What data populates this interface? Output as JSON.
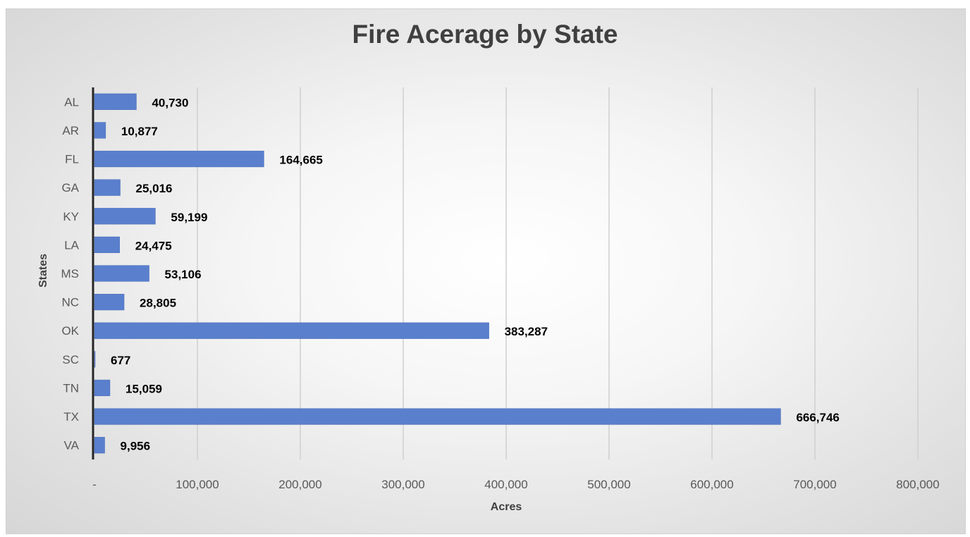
{
  "chart_data": {
    "type": "bar",
    "orientation": "horizontal",
    "title": "Fire Acerage by State",
    "xlabel": "Acres",
    "ylabel": "States",
    "categories": [
      "AL",
      "AR",
      "FL",
      "GA",
      "KY",
      "LA",
      "MS",
      "NC",
      "OK",
      "SC",
      "TN",
      "TX",
      "VA"
    ],
    "values": [
      40730,
      10877,
      164665,
      25016,
      59199,
      24475,
      53106,
      28805,
      383287,
      677,
      15059,
      666746,
      9956
    ],
    "value_labels": [
      "40,730",
      "10,877",
      "164,665",
      "25,016",
      "59,199",
      "24,475",
      "53,106",
      "28,805",
      "383,287",
      "677",
      "15,059",
      "666,746",
      "9,956"
    ],
    "xlim": [
      0,
      800000
    ],
    "x_ticks": [
      0,
      100000,
      200000,
      300000,
      400000,
      500000,
      600000,
      700000,
      800000
    ],
    "x_tick_labels": [
      "-",
      "100,000",
      "200,000",
      "300,000",
      "400,000",
      "500,000",
      "600,000",
      "700,000",
      "800,000"
    ],
    "grid": "vertical",
    "legend": "none",
    "colors": {
      "bar": "#5a7fcd",
      "title": "#404040",
      "axis_text": "#595959",
      "data_label": "#000000"
    }
  }
}
